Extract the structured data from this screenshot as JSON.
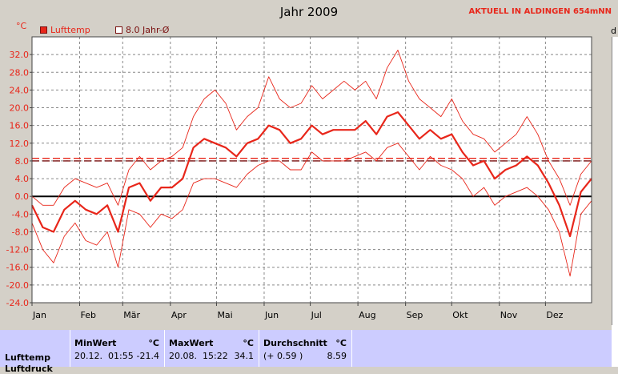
{
  "header": {
    "status_text": "AKTUELL IN ALDINGEN 654mNN",
    "unit": "°C",
    "edge_char": "d"
  },
  "legend": {
    "series_label": "Lufttemp",
    "avg_label": "8.0 Jahr-Ø"
  },
  "colors": {
    "series": "#e8261a",
    "avg_line": "#7a1010",
    "grid": "#888888",
    "plot_bg": "#ffffff",
    "table_bg": "#ccccff"
  },
  "chart_data": {
    "type": "line",
    "title": "Jahr 2009",
    "ylabel": "°C",
    "ylim": [
      -24,
      36
    ],
    "yticks": [
      32,
      28,
      24,
      20,
      16,
      12,
      8,
      4,
      0,
      -4,
      -8,
      -12,
      -16,
      -20,
      -24
    ],
    "ytick_labels": [
      "32.0",
      "28.0",
      "24.0",
      "20.0",
      "16.0",
      "12.0",
      "8.0",
      "4.0",
      "0.0",
      "-4.0",
      "-8.0",
      "-12.0",
      "-16.0",
      "-20.0",
      "-24.0"
    ],
    "xlim": [
      1,
      365
    ],
    "xticks": [
      1,
      32,
      60,
      91,
      121,
      152,
      182,
      213,
      244,
      274,
      305,
      335
    ],
    "xtick_labels": [
      "Jan",
      "Feb",
      "Mär",
      "Apr",
      "Mai",
      "Jun",
      "Jul",
      "Aug",
      "Sep",
      "Okt",
      "Nov",
      "Dez"
    ],
    "grid": true,
    "legend": "top-left",
    "reference_lines": [
      {
        "name": "8.0 Jahr-Ø",
        "y": 8.0,
        "style": "dashed"
      },
      {
        "y": 8.59,
        "style": "dashed"
      },
      {
        "y": 0,
        "style": "solid"
      }
    ],
    "x": [
      1,
      8,
      15,
      22,
      29,
      36,
      43,
      50,
      57,
      64,
      71,
      78,
      85,
      92,
      99,
      106,
      113,
      120,
      127,
      134,
      141,
      148,
      155,
      162,
      169,
      176,
      183,
      190,
      197,
      204,
      211,
      218,
      225,
      232,
      239,
      246,
      253,
      260,
      267,
      274,
      281,
      288,
      295,
      302,
      309,
      316,
      323,
      330,
      337,
      344,
      351,
      358,
      365
    ],
    "series": [
      {
        "name": "Lufttemp",
        "role": "mean",
        "values": [
          -2,
          -7,
          -8,
          -3,
          -1,
          -3,
          -4,
          -2,
          -8,
          2,
          3,
          -1,
          2,
          2,
          4,
          11,
          13,
          12,
          11,
          9,
          12,
          13,
          16,
          15,
          12,
          13,
          16,
          14,
          15,
          15,
          15,
          17,
          14,
          18,
          19,
          16,
          13,
          15,
          13,
          14,
          10,
          7,
          8,
          4,
          6,
          7,
          9,
          7,
          3,
          -2,
          -9,
          1,
          4
        ]
      },
      {
        "role": "max",
        "values": [
          0,
          -2,
          -2,
          2,
          4,
          3,
          2,
          3,
          -2,
          6,
          9,
          6,
          8,
          9,
          11,
          18,
          22,
          24,
          21,
          15,
          18,
          20,
          27,
          22,
          20,
          21,
          25,
          22,
          24,
          26,
          24,
          26,
          22,
          29,
          33,
          26,
          22,
          20,
          18,
          22,
          17,
          14,
          13,
          10,
          12,
          14,
          18,
          14,
          8,
          4,
          -2,
          5,
          8
        ]
      },
      {
        "role": "min",
        "values": [
          -6,
          -12,
          -15,
          -9,
          -6,
          -10,
          -11,
          -8,
          -16,
          -3,
          -4,
          -7,
          -4,
          -5,
          -3,
          3,
          4,
          4,
          3,
          2,
          5,
          7,
          8,
          8,
          6,
          6,
          10,
          8,
          8,
          8,
          9,
          10,
          8,
          11,
          12,
          9,
          6,
          9,
          7,
          6,
          4,
          0,
          2,
          -2,
          0,
          1,
          2,
          0,
          -3,
          -8,
          -18,
          -4,
          -1
        ]
      }
    ]
  },
  "stats": {
    "row_label": "Lufttemp",
    "row_label_2": "Luftdruck",
    "unit": "°C",
    "min": {
      "header": "MinWert",
      "date": "20.12.",
      "time": "01:55",
      "value": "-21.4"
    },
    "max": {
      "header": "MaxWert",
      "date": "20.08.",
      "time": "15:22",
      "value": "34.1"
    },
    "avg": {
      "header": "Durchschnitt",
      "delta": "(+ 0.59 )",
      "value": "8.59"
    }
  }
}
